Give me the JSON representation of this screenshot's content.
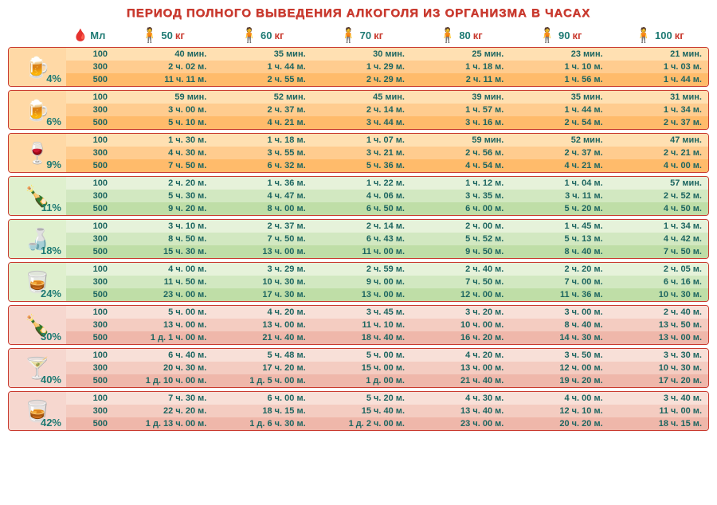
{
  "title": "ПЕРИОД ПОЛНОГО ВЫВЕДЕНИЯ АЛКОГОЛЯ ИЗ ОРГАНИЗМА В ЧАСАХ",
  "ml_label": "Mл",
  "kg_suffix": "кг",
  "weights": [
    "50",
    "60",
    "70",
    "80",
    "90",
    "100"
  ],
  "volumes": [
    "100",
    "300",
    "500"
  ],
  "palette": {
    "orange": [
      "#ffe0b2",
      "#ffcc8f",
      "#ffbb6b"
    ],
    "green": [
      "#e6f2da",
      "#d2e8c1",
      "#bfdea7"
    ],
    "rose": [
      "#f8e0d8",
      "#f4ccc1",
      "#efb7aa"
    ],
    "icon_bg": {
      "orange": "#ffd9a6",
      "green": "#dff0ce",
      "rose": "#f6d7cf"
    }
  },
  "groups": [
    {
      "pct": "4%",
      "icon": "🍺",
      "scheme": "orange",
      "rows": [
        [
          "40 мин.",
          "35 мин.",
          "30 мин.",
          "25 мин.",
          "23 мин.",
          "21 мин."
        ],
        [
          "2 ч. 02 м.",
          "1 ч. 44 м.",
          "1 ч. 29 м.",
          "1 ч. 18 м.",
          "1 ч. 10 м.",
          "1 ч. 03 м."
        ],
        [
          "11 ч. 11 м.",
          "2 ч. 55 м.",
          "2 ч. 29 м.",
          "2 ч. 11 м.",
          "1 ч. 56 м.",
          "1 ч. 44 м."
        ]
      ]
    },
    {
      "pct": "6%",
      "icon": "🍺",
      "scheme": "orange",
      "rows": [
        [
          "59 мин.",
          "52 мин.",
          "45 мин.",
          "39 мин.",
          "35 мин.",
          "31 мин."
        ],
        [
          "3 ч. 00 м.",
          "2 ч. 37 м.",
          "2 ч. 14 м.",
          "1 ч. 57 м.",
          "1 ч. 44 м.",
          "1 ч. 34 м."
        ],
        [
          "5 ч. 10 м.",
          "4 ч. 21 м.",
          "3 ч. 44 м.",
          "3 ч. 16 м.",
          "2 ч. 54 м.",
          "2 ч. 37 м."
        ]
      ]
    },
    {
      "pct": "9%",
      "icon": "🍷",
      "scheme": "orange",
      "rows": [
        [
          "1 ч. 30 м.",
          "1 ч. 18 м.",
          "1 ч. 07 м.",
          "59 мин.",
          "52 мин.",
          "47 мин."
        ],
        [
          "4 ч. 30 м.",
          "3 ч. 55 м.",
          "3 ч. 21 м.",
          "2 ч. 56 м.",
          "2 ч. 37 м.",
          "2 ч. 21 м."
        ],
        [
          "7 ч. 50 м.",
          "6 ч. 32 м.",
          "5 ч. 36 м.",
          "4 ч. 54 м.",
          "4 ч. 21 м.",
          "4 ч. 00 м."
        ]
      ]
    },
    {
      "pct": "11%",
      "icon": "🍾",
      "scheme": "green",
      "rows": [
        [
          "2 ч. 20 м.",
          "1 ч. 36 м.",
          "1 ч. 22 м.",
          "1 ч. 12 м.",
          "1 ч. 04 м.",
          "57 мин."
        ],
        [
          "5 ч. 30 м.",
          "4 ч. 47 м.",
          "4 ч. 06 м.",
          "3 ч. 35 м.",
          "3 ч. 11 м.",
          "2 ч. 52 м."
        ],
        [
          "9 ч. 20 м.",
          "8 ч. 00 м.",
          "6 ч. 50 м.",
          "6 ч. 00 м.",
          "5 ч. 20 м.",
          "4 ч. 50 м."
        ]
      ]
    },
    {
      "pct": "18%",
      "icon": "🍶",
      "scheme": "green",
      "rows": [
        [
          "3 ч. 10 м.",
          "2 ч. 37 м.",
          "2 ч. 14 м.",
          "2 ч. 00 м.",
          "1 ч. 45 м.",
          "1 ч. 34 м."
        ],
        [
          "8 ч. 50 м.",
          "7 ч. 50 м.",
          "6 ч. 43 м.",
          "5 ч. 52 м.",
          "5 ч. 13 м.",
          "4 ч. 42 м."
        ],
        [
          "15 ч. 30 м.",
          "13 ч. 00 м.",
          "11 ч. 00 м.",
          "9 ч. 50 м.",
          "8 ч. 40 м.",
          "7 ч. 50 м."
        ]
      ]
    },
    {
      "pct": "24%",
      "icon": "🥃",
      "scheme": "green",
      "rows": [
        [
          "4 ч. 00 м.",
          "3 ч. 29 м.",
          "2 ч. 59 м.",
          "2 ч. 40 м.",
          "2 ч. 20 м.",
          "2 ч. 05 м."
        ],
        [
          "11 ч. 50 м.",
          "10 ч. 30 м.",
          "9 ч. 00 м.",
          "7 ч. 50 м.",
          "7 ч. 00 м.",
          "6 ч. 16 м."
        ],
        [
          "23 ч. 00 м.",
          "17 ч. 30 м.",
          "13 ч. 00 м.",
          "12 ч. 00 м.",
          "11 ч. 36 м.",
          "10 ч. 30 м."
        ]
      ]
    },
    {
      "pct": "30%",
      "icon": "🍾",
      "scheme": "rose",
      "rows": [
        [
          "5 ч. 00 м.",
          "4 ч. 20 м.",
          "3 ч. 45 м.",
          "3 ч. 20 м.",
          "3 ч. 00 м.",
          "2 ч. 40 м."
        ],
        [
          "13 ч. 00 м.",
          "13 ч. 00 м.",
          "11 ч. 10 м.",
          "10 ч. 00 м.",
          "8 ч. 40 м.",
          "13 ч. 50 м."
        ],
        [
          "1 д. 1 ч. 00 м.",
          "21 ч. 40 м.",
          "18 ч. 40 м.",
          "16 ч. 20 м.",
          "14 ч. 30 м.",
          "13 ч. 00 м."
        ]
      ]
    },
    {
      "pct": "40%",
      "icon": "🍸",
      "scheme": "rose",
      "rows": [
        [
          "6 ч. 40 м.",
          "5 ч. 48 м.",
          "5 ч. 00 м.",
          "4 ч. 20 м.",
          "3 ч. 50 м.",
          "3 ч. 30 м."
        ],
        [
          "20 ч. 30 м.",
          "17 ч. 20 м.",
          "15 ч. 00 м.",
          "13 ч. 00 м.",
          "12 ч. 00 м.",
          "10 ч. 30 м."
        ],
        [
          "1 д. 10 ч. 00 м.",
          "1 д. 5 ч. 00 м.",
          "1 д. 00 м.",
          "21 ч. 40 м.",
          "19 ч. 20 м.",
          "17 ч. 20 м."
        ]
      ]
    },
    {
      "pct": "42%",
      "icon": "🥃",
      "scheme": "rose",
      "rows": [
        [
          "7 ч. 30 м.",
          "6 ч. 00 м.",
          "5 ч. 20 м.",
          "4 ч. 30 м.",
          "4 ч. 00 м.",
          "3 ч. 40 м."
        ],
        [
          "22 ч. 20 м.",
          "18 ч. 15 м.",
          "15 ч. 40 м.",
          "13 ч. 40 м.",
          "12 ч. 10 м.",
          "11 ч. 00 м."
        ],
        [
          "1 д. 13 ч. 00 м.",
          "1 д. 6 ч. 30 м.",
          "1 д. 2 ч. 00 м.",
          "23 ч. 00 м.",
          "20 ч. 20 м.",
          "18 ч. 15 м."
        ]
      ]
    }
  ]
}
